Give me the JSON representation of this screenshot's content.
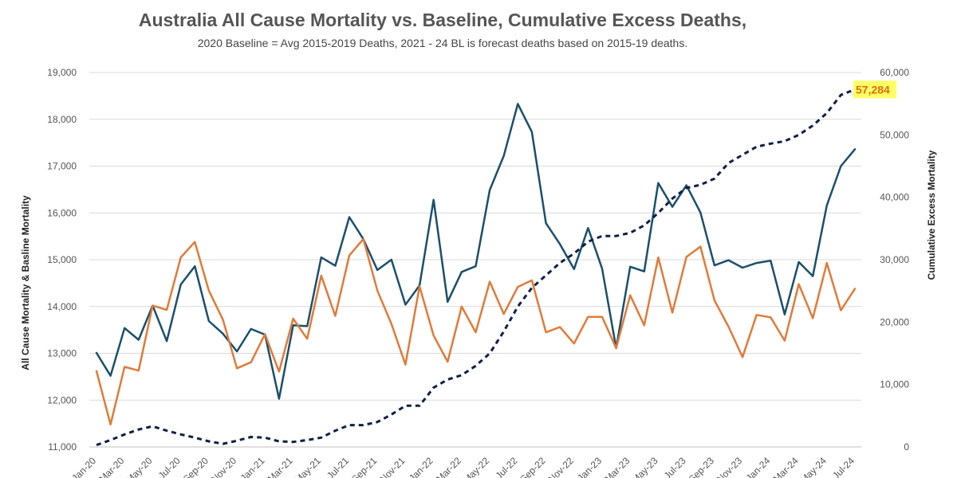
{
  "chart_data": {
    "type": "line",
    "title": "Australia All Cause Mortality vs. Baseline, Cumulative Excess Deaths,",
    "subtitle": "2020 Baseline = Avg 2015-2019 Deaths, 2021 - 24 BL is forecast deaths based on 2015-19 deaths.",
    "ylabel_left": "All Cause Mortality & Basline Mortality",
    "ylabel_right": "Cumulative Excess Mortality",
    "ylim_left": [
      11000,
      19000
    ],
    "ylim_right": [
      0,
      60000
    ],
    "yticks_left": [
      "11,000",
      "12,000",
      "13,000",
      "14,000",
      "15,000",
      "16,000",
      "17,000",
      "18,000",
      "19,000"
    ],
    "yticks_right": [
      "0",
      "10,000",
      "20,000",
      "30,000",
      "40,000",
      "50,000",
      "60,000"
    ],
    "categories": [
      "Jan-20",
      "Feb-20",
      "Mar-20",
      "Apr-20",
      "May-20",
      "Jun-20",
      "Jul-20",
      "Aug-20",
      "Sep-20",
      "Oct-20",
      "Nov-20",
      "Dec-20",
      "Jan-21",
      "Feb-21",
      "Mar-21",
      "Apr-21",
      "May-21",
      "Jun-21",
      "Jul-21",
      "Aug-21",
      "Sep-21",
      "Oct-21",
      "Nov-21",
      "Dec-21",
      "Jan-22",
      "Feb-22",
      "Mar-22",
      "Apr-22",
      "May-22",
      "Jun-22",
      "Jul-22",
      "Aug-22",
      "Sep-22",
      "Oct-22",
      "Nov-22",
      "Dec-22",
      "Jan-23",
      "Feb-23",
      "Mar-23",
      "Apr-23",
      "May-23",
      "Jun-23",
      "Jul-23",
      "Aug-23",
      "Sep-23",
      "Oct-23",
      "Nov-23",
      "Dec-23",
      "Jan-24",
      "Feb-24",
      "Mar-24",
      "Apr-24",
      "May-24",
      "Jun-24",
      "Jul-24"
    ],
    "xtick_labels": [
      "Jan-20",
      "Mar-20",
      "May-20",
      "Jul-20",
      "Sep-20",
      "Nov-20",
      "Jan-21",
      "Mar-21",
      "May-21",
      "Jul-21",
      "Sep-21",
      "Nov-21",
      "Jan-22",
      "Mar-22",
      "May-22",
      "Jul-22",
      "Sep-22",
      "Nov-22",
      "Jan-23",
      "Mar-23",
      "May-23",
      "Jul-23",
      "Sep-23",
      "Nov-23",
      "Jan-24",
      "Mar-24",
      "May-24",
      "Jul-24"
    ],
    "series": [
      {
        "axis": "left",
        "color": "#1b4f6b",
        "style": "solid",
        "values": [
          13010,
          12520,
          13540,
          13290,
          14020,
          13260,
          14470,
          14860,
          13690,
          13420,
          13040,
          13520,
          13400,
          12030,
          13600,
          13580,
          15050,
          14870,
          15910,
          15440,
          14780,
          15000,
          14040,
          14450,
          16280,
          14100,
          14740,
          14860,
          16490,
          17220,
          18330,
          17730,
          15780,
          15330,
          14800,
          15680,
          14810,
          13110,
          14850,
          14750,
          16640,
          16130,
          16590,
          16010,
          14880,
          14990,
          14830,
          14930,
          14980,
          13830,
          14950,
          14650,
          16160,
          17000,
          17360
        ]
      },
      {
        "axis": "left",
        "color": "#e07b39",
        "style": "solid",
        "values": [
          12620,
          11480,
          12710,
          12630,
          14020,
          13930,
          15050,
          15380,
          14340,
          13720,
          12680,
          12810,
          13410,
          12610,
          13740,
          13310,
          14660,
          13800,
          15090,
          15440,
          14340,
          13630,
          12760,
          14430,
          13380,
          12820,
          14000,
          13450,
          14530,
          13840,
          14420,
          14560,
          13450,
          13560,
          13210,
          13780,
          13780,
          13110,
          14240,
          13600,
          15050,
          13870,
          15060,
          15280,
          14130,
          13570,
          12920,
          13820,
          13770,
          13270,
          14480,
          13750,
          14930,
          13920,
          14380
        ]
      },
      {
        "axis": "right",
        "color": "#0f1f45",
        "style": "dashed",
        "values": [
          300,
          1100,
          2000,
          2800,
          3300,
          2600,
          2000,
          1500,
          900,
          500,
          1000,
          1600,
          1500,
          900,
          800,
          1100,
          1500,
          2600,
          3500,
          3500,
          4000,
          5200,
          6600,
          6600,
          9500,
          10800,
          11500,
          13000,
          15000,
          18500,
          22500,
          25500,
          27500,
          29500,
          31000,
          32900,
          33800,
          33800,
          34300,
          35500,
          37500,
          39800,
          41500,
          42000,
          43000,
          45500,
          46800,
          48100,
          48600,
          49000,
          50000,
          51500,
          53500,
          56400,
          57284
        ]
      }
    ],
    "annotation": {
      "text": "57,284",
      "series_index": 2,
      "point_index": 54,
      "highlight": "#ffff66"
    },
    "grid": true,
    "legend": "none"
  }
}
